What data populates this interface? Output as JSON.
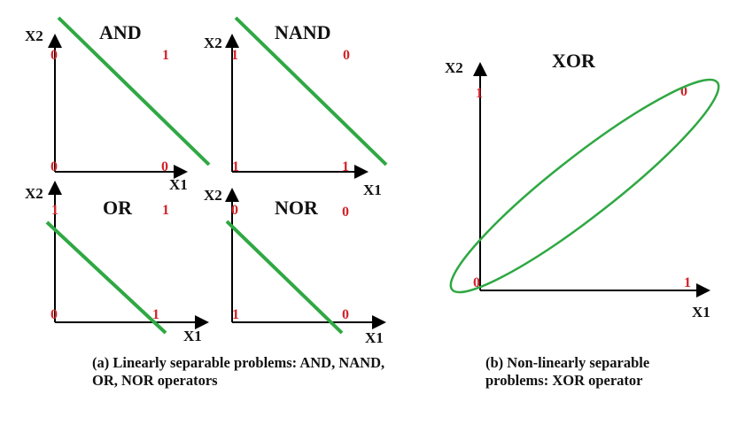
{
  "colors": {
    "axis": "#000000",
    "value": "#d0232a",
    "separator": "#2fa843",
    "text": "#111111"
  },
  "axis_labels": {
    "x": "X1",
    "y": "X2"
  },
  "panels": [
    {
      "id": "and",
      "title": "AND",
      "values": {
        "bottom_left": "0",
        "top_left": "0",
        "bottom_right": "0",
        "top_right": "1"
      }
    },
    {
      "id": "nand",
      "title": "NAND",
      "values": {
        "bottom_left": "1",
        "top_left": "1",
        "bottom_right": "1",
        "top_right": "0"
      }
    },
    {
      "id": "or",
      "title": "OR",
      "values": {
        "bottom_left": "0",
        "top_left": "1",
        "bottom_right": "1",
        "top_right": "1"
      }
    },
    {
      "id": "nor",
      "title": "NOR",
      "values": {
        "bottom_left": "1",
        "top_left": "0",
        "bottom_right": "0",
        "top_right": "0"
      }
    },
    {
      "id": "xor",
      "title": "XOR",
      "values": {
        "bottom_left": "0",
        "top_left": "1",
        "bottom_right": "1",
        "top_right": "0"
      }
    }
  ],
  "captions": {
    "a": "(a) Linearly separable problems: AND, NAND, OR, NOR operators",
    "b": "(b) Non-linearly separable problems: XOR operator"
  }
}
